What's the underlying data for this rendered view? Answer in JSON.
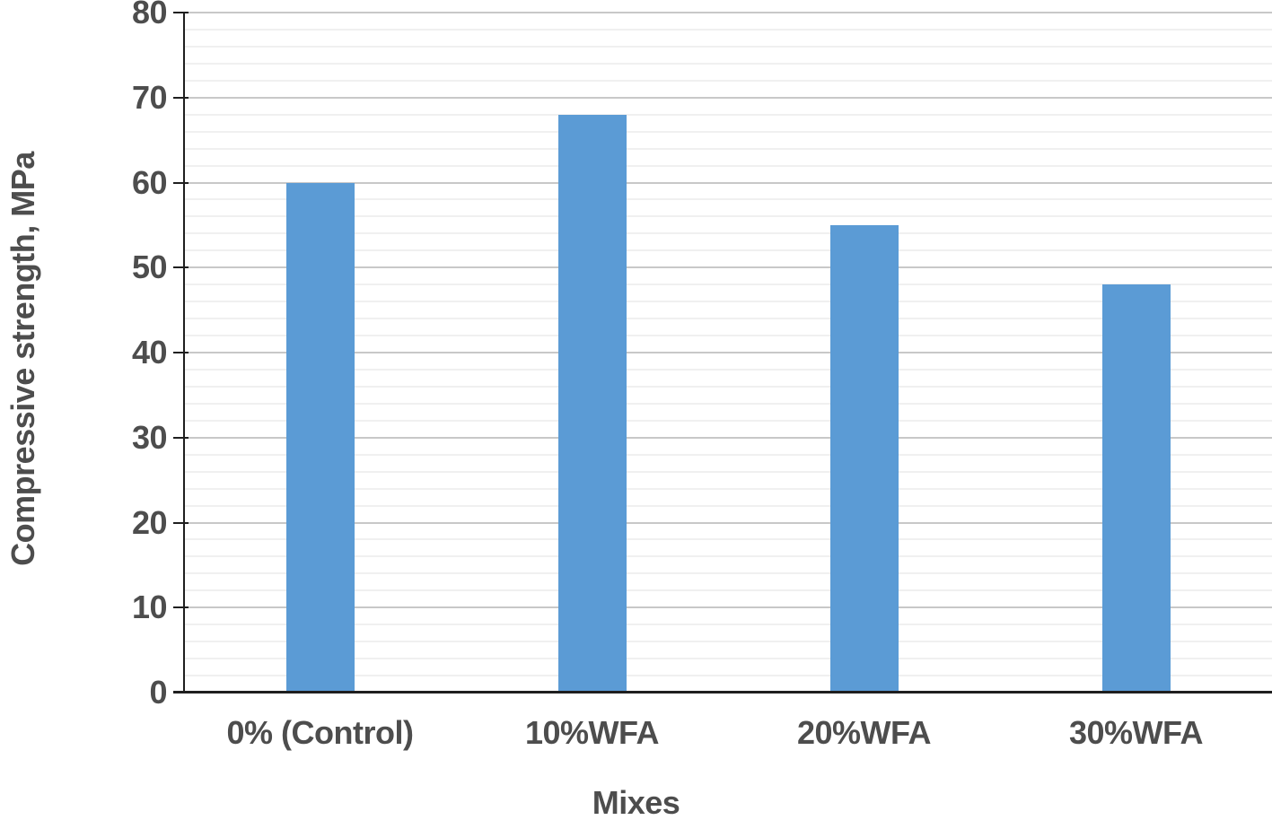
{
  "chart_data": {
    "type": "bar",
    "title": "",
    "categories": [
      "0% (Control)",
      "10%WFA",
      "20%WFA",
      "30%WFA"
    ],
    "values": [
      60,
      68,
      55,
      48
    ],
    "xlabel": "Mixes",
    "ylabel": "Compressive strength, MPa",
    "ylim": [
      0,
      80
    ],
    "yticks": [
      0,
      10,
      20,
      30,
      40,
      50,
      60,
      70,
      80
    ],
    "ytick_major_step": 10,
    "ytick_minor_step": 2,
    "grid": "horizontal major+minor",
    "legend_position": "none",
    "series_name": "Compressive strength"
  },
  "colors": {
    "bar": "#5b9bd5",
    "axis_line": "#1f1f1f",
    "major_gridline": "#c8c8c8",
    "minor_gridline": "#f0f0f0",
    "text": "#4d4d4d",
    "background": "#ffffff"
  }
}
